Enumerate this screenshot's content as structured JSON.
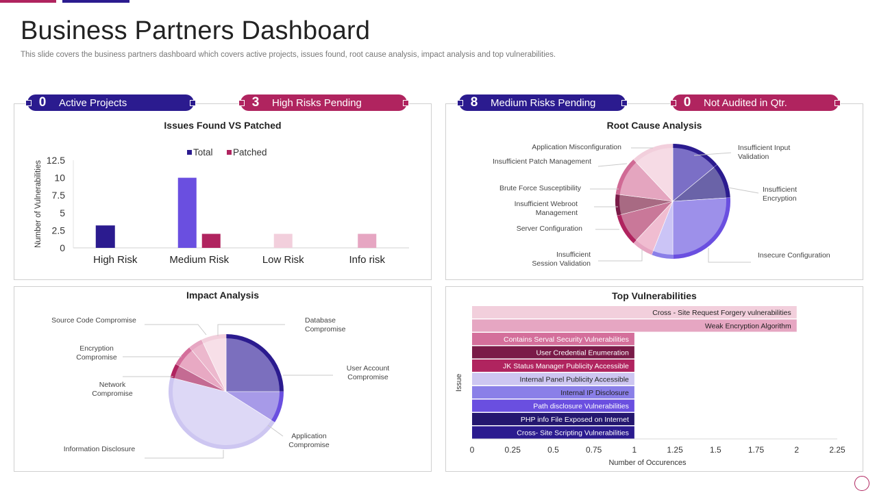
{
  "header": {
    "title": "Business Partners Dashboard",
    "subtitle": "This slide covers the business partners dashboard which covers active projects, issues found, root cause analysis, impact analysis and top vulnerabilities."
  },
  "colors": {
    "navy": "#2b1b8f",
    "crimson": "#b0245f",
    "violet": "#6a4fe0",
    "pale_pink": "#f2cfdc",
    "pink": "#e6a6c2"
  },
  "kpis": [
    {
      "value": "0",
      "label": "Active Projects",
      "color": "#2b1b8f"
    },
    {
      "value": "3",
      "label": "High Risks Pending",
      "color": "#b0245f"
    },
    {
      "value": "8",
      "label": "Medium Risks Pending",
      "color": "#2b1b8f"
    },
    {
      "value": "0",
      "label": "Not Audited in Qtr.",
      "color": "#b0245f"
    }
  ],
  "chart_data": [
    {
      "type": "bar",
      "title": "Issues Found VS Patched",
      "categories": [
        "High Risk",
        "Medium Risk",
        "Low Risk",
        "Info risk"
      ],
      "series": [
        {
          "name": "Total",
          "values": [
            3.2,
            10,
            null,
            null
          ],
          "colors": [
            "#2b1b8f",
            "#6a4fe0",
            null,
            null
          ]
        },
        {
          "name": "Patched",
          "values": [
            null,
            2,
            2,
            2
          ],
          "colors": [
            null,
            "#b0245f",
            "#f2cfdc",
            "#e6a6c2"
          ]
        }
      ],
      "legend": [
        {
          "name": "Total",
          "color": "#2b1b8f"
        },
        {
          "name": "Patched",
          "color": "#b0245f"
        }
      ],
      "xlabel": "",
      "ylabel": "Number of Vulnerabilities",
      "ylim": [
        0,
        12.5
      ],
      "yticks": [
        "0",
        "2.5",
        "5",
        "7.5",
        "10",
        "12.5"
      ]
    },
    {
      "type": "pie",
      "title": "Root Cause Analysis",
      "slices": [
        {
          "label": "Insufficient Input Validation",
          "value": 14,
          "color": "#7b6fc6",
          "edge": "#2b1b8f"
        },
        {
          "label": "Insufficient Encryption",
          "value": 10,
          "color": "#6a63a8",
          "edge": "#2b1b8f"
        },
        {
          "label": "Insecure Configuration",
          "value": 26,
          "color": "#9d90ea",
          "edge": "#6a4fe0"
        },
        {
          "label": "Insufficient Session Validation",
          "value": 6,
          "color": "#cbc4f6",
          "edge": "#8a7fe8"
        },
        {
          "label": "Server Configuration",
          "value": 6,
          "color": "#f0bdd1",
          "edge": "#e6a6c2"
        },
        {
          "label": "Insufficient Webroot Management",
          "value": 9,
          "color": "#c97899",
          "edge": "#b0245f"
        },
        {
          "label": "Brute Force Susceptibility",
          "value": 6,
          "color": "#a86a83",
          "edge": "#7a1b48"
        },
        {
          "label": "Insufficient Patch Management",
          "value": 11,
          "color": "#e4a5bf",
          "edge": "#d06a95"
        },
        {
          "label": "Application Misconfiguration",
          "value": 12,
          "color": "#f6dbe5",
          "edge": "#f2cfdc"
        }
      ]
    },
    {
      "type": "pie",
      "title": "Impact Analysis",
      "slices": [
        {
          "label": "User Account Compromise",
          "value": 25,
          "color": "#7b6fbe",
          "edge": "#2b1b8f"
        },
        {
          "label": "Application Compromise",
          "value": 9,
          "color": "#a79ae8",
          "edge": "#6a4fe0"
        },
        {
          "label": "Information Disclosure",
          "value": 45,
          "color": "#ddd8f6",
          "edge": "#cdc6f1"
        },
        {
          "label": "Network Compromise",
          "value": 4,
          "color": "#c46b93",
          "edge": "#b0245f"
        },
        {
          "label": "Encryption Compromise",
          "value": 6,
          "color": "#e8a9c3",
          "edge": "#d46f9b"
        },
        {
          "label": "Source Code Compromise",
          "value": 4,
          "color": "#ecb8cd",
          "edge": "#e6a6c2"
        },
        {
          "label": "Database Compromise",
          "value": 7,
          "color": "#f7dfe8",
          "edge": "#f2cfdc"
        }
      ]
    },
    {
      "type": "bar",
      "orientation": "horizontal",
      "title": "Top Vulnerabilities",
      "categories": [
        "Cross - Site Request Forgery vulnerabilities",
        "Weak Encryption Algorithm",
        "Contains Serval Security Vulnerabilities",
        "User Credential Enumeration",
        "JK Status Manager Publicity Accessible",
        "Internal Panel Publicity Accessible",
        "Internal IP Disclosure",
        "Path disclosure Vulnerabilities",
        "PHP  info File Exposed on Internet",
        "Cross- Site Scripting Vulnerabilities"
      ],
      "values": [
        2,
        2,
        1,
        1,
        1,
        1,
        1,
        1,
        1,
        1
      ],
      "colors": [
        "#f2cfdc",
        "#e6a6c2",
        "#d46f9b",
        "#7a1b48",
        "#b0245f",
        "#cdc6f1",
        "#8a7fe8",
        "#6a4fe0",
        "#24176f",
        "#2b1b8f"
      ],
      "label_colors": [
        "#222222",
        "#222222",
        "#ffffff",
        "#ffffff",
        "#ffffff",
        "#222222",
        "#222222",
        "#ffffff",
        "#ffffff",
        "#ffffff"
      ],
      "xlabel": "Number of Occurences",
      "ylabel": "Issue",
      "xlim": [
        0,
        2.25
      ],
      "xticks": [
        "0",
        "0.25",
        "0.5",
        "0.75",
        "1",
        "1.25",
        "1.5",
        "1.75",
        "2",
        "2.25"
      ]
    }
  ]
}
